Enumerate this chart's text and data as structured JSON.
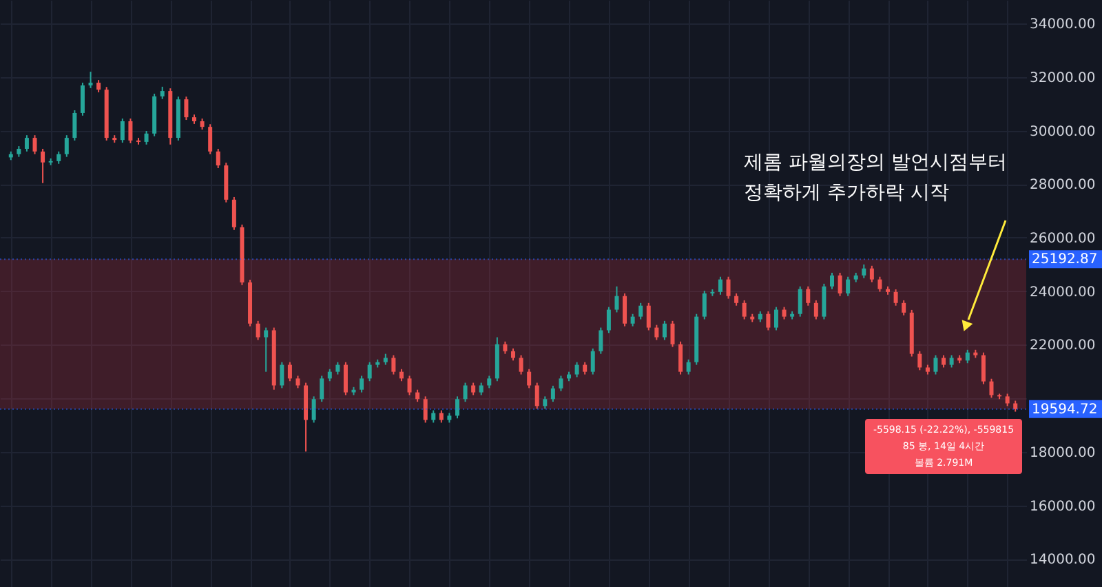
{
  "chart_data": {
    "type": "candlestick",
    "categories": [
      null,
      null,
      null,
      null,
      null,
      null,
      null,
      null,
      null,
      null,
      null,
      null,
      null,
      null,
      null,
      null,
      null,
      null,
      null,
      null,
      null,
      null,
      null,
      null,
      null,
      null,
      null,
      null,
      null,
      null,
      null,
      null,
      null,
      null,
      null,
      null,
      null,
      null,
      null,
      null,
      null,
      null,
      null,
      null,
      null,
      null,
      null,
      null,
      null,
      null,
      null,
      null,
      null,
      null,
      null,
      null,
      null,
      null,
      null,
      null,
      null,
      null,
      null,
      null,
      null,
      null,
      null,
      null,
      null,
      null,
      null,
      null,
      null,
      null,
      null,
      null,
      null,
      null,
      null,
      null,
      null,
      null,
      null,
      null,
      null,
      null,
      null,
      null,
      null,
      null,
      null,
      null,
      null,
      null,
      null,
      null,
      null,
      null,
      null,
      null,
      null,
      null,
      null,
      null,
      null,
      null,
      null,
      null,
      null,
      null,
      null,
      null,
      null,
      null,
      null,
      null,
      null,
      null,
      null,
      null,
      null,
      null,
      null,
      null,
      null,
      null,
      null
    ],
    "ohlc": [
      [
        29000,
        29220,
        28900,
        29120
      ],
      [
        29120,
        29420,
        29020,
        29320
      ],
      [
        29320,
        29830,
        29220,
        29730
      ],
      [
        29730,
        29830,
        29120,
        29220
      ],
      [
        29220,
        29320,
        28040,
        28810
      ],
      [
        28810,
        28960,
        28710,
        28860
      ],
      [
        28860,
        29220,
        28760,
        29120
      ],
      [
        29120,
        29830,
        29020,
        29730
      ],
      [
        29730,
        30760,
        29630,
        30660
      ],
      [
        30660,
        31790,
        30560,
        31690
      ],
      [
        31690,
        32200,
        31590,
        31790
      ],
      [
        31790,
        31890,
        31430,
        31530
      ],
      [
        31530,
        31630,
        29630,
        29730
      ],
      [
        29730,
        29830,
        29550,
        29650
      ],
      [
        29650,
        30450,
        29550,
        30350
      ],
      [
        30350,
        30450,
        29530,
        29630
      ],
      [
        29630,
        29730,
        29480,
        29580
      ],
      [
        29580,
        29990,
        29480,
        29890
      ],
      [
        29890,
        31380,
        29790,
        31280
      ],
      [
        31280,
        31640,
        31180,
        31480
      ],
      [
        31480,
        31580,
        29480,
        29730
      ],
      [
        29730,
        31270,
        29630,
        31170
      ],
      [
        31170,
        31270,
        30400,
        30500
      ],
      [
        30500,
        30600,
        30250,
        30350
      ],
      [
        30350,
        30450,
        30040,
        30140
      ],
      [
        30140,
        30240,
        29120,
        29220
      ],
      [
        29220,
        29320,
        28600,
        28700
      ],
      [
        28700,
        28800,
        27320,
        27420
      ],
      [
        27420,
        27520,
        26290,
        26390
      ],
      [
        26390,
        26490,
        24230,
        24330
      ],
      [
        24330,
        24430,
        22690,
        22790
      ],
      [
        22790,
        22890,
        22180,
        22280
      ],
      [
        22280,
        22640,
        20990,
        22540
      ],
      [
        22540,
        22640,
        20320,
        20480
      ],
      [
        20480,
        21350,
        20380,
        21250
      ],
      [
        21250,
        21350,
        20640,
        20740
      ],
      [
        20740,
        20840,
        20380,
        20480
      ],
      [
        20480,
        20580,
        18010,
        19190
      ],
      [
        19190,
        20070,
        19090,
        19970
      ],
      [
        19970,
        20840,
        19870,
        20740
      ],
      [
        20740,
        21090,
        20640,
        20990
      ],
      [
        20990,
        21350,
        20890,
        21250
      ],
      [
        21250,
        21350,
        20120,
        20220
      ],
      [
        20220,
        20420,
        20120,
        20320
      ],
      [
        20320,
        20840,
        20220,
        20740
      ],
      [
        20740,
        21350,
        20640,
        21250
      ],
      [
        21250,
        21450,
        21150,
        21350
      ],
      [
        21350,
        21660,
        21250,
        21510
      ],
      [
        21510,
        21610,
        20890,
        20990
      ],
      [
        20990,
        21090,
        20640,
        20740
      ],
      [
        20740,
        20840,
        20120,
        20220
      ],
      [
        20220,
        20320,
        19870,
        19970
      ],
      [
        19970,
        20070,
        19090,
        19190
      ],
      [
        19190,
        19550,
        19090,
        19450
      ],
      [
        19450,
        19550,
        19090,
        19190
      ],
      [
        19190,
        19450,
        19090,
        19350
      ],
      [
        19350,
        20070,
        19250,
        19970
      ],
      [
        19970,
        20580,
        19870,
        20480
      ],
      [
        20480,
        20580,
        20120,
        20220
      ],
      [
        20220,
        20580,
        20120,
        20480
      ],
      [
        20480,
        20840,
        20380,
        20740
      ],
      [
        20740,
        22280,
        20640,
        22020
      ],
      [
        22020,
        22120,
        21660,
        21760
      ],
      [
        21760,
        21860,
        21410,
        21510
      ],
      [
        21510,
        21610,
        20890,
        20990
      ],
      [
        20990,
        21090,
        20380,
        20480
      ],
      [
        20480,
        20580,
        19610,
        19710
      ],
      [
        19710,
        20070,
        19610,
        19970
      ],
      [
        19970,
        20470,
        19870,
        20370
      ],
      [
        20370,
        20840,
        20270,
        20740
      ],
      [
        20740,
        20990,
        20640,
        20890
      ],
      [
        20890,
        21350,
        20790,
        21250
      ],
      [
        21250,
        21350,
        20890,
        20990
      ],
      [
        20990,
        21860,
        20890,
        21760
      ],
      [
        21760,
        22640,
        21660,
        22540
      ],
      [
        22540,
        23410,
        22440,
        23310
      ],
      [
        23310,
        24180,
        23210,
        23820
      ],
      [
        23820,
        23920,
        22690,
        22790
      ],
      [
        22790,
        23150,
        22690,
        23050
      ],
      [
        23050,
        23560,
        22950,
        23460
      ],
      [
        23460,
        23560,
        22540,
        22640
      ],
      [
        22640,
        22740,
        22180,
        22280
      ],
      [
        22280,
        22890,
        22180,
        22790
      ],
      [
        22790,
        22890,
        21920,
        22020
      ],
      [
        22020,
        22120,
        20890,
        20990
      ],
      [
        20990,
        21450,
        20890,
        21350
      ],
      [
        21350,
        23150,
        21250,
        23050
      ],
      [
        23050,
        24020,
        22950,
        23920
      ],
      [
        23920,
        24070,
        23820,
        23970
      ],
      [
        23970,
        24540,
        23870,
        24440
      ],
      [
        24440,
        24540,
        23720,
        23820
      ],
      [
        23820,
        23920,
        23460,
        23560
      ],
      [
        23560,
        23660,
        22950,
        23050
      ],
      [
        23050,
        23150,
        22850,
        22950
      ],
      [
        22950,
        23250,
        22850,
        23150
      ],
      [
        23150,
        23250,
        22540,
        22640
      ],
      [
        22640,
        23410,
        22540,
        23310
      ],
      [
        23310,
        23410,
        22950,
        23050
      ],
      [
        23050,
        23250,
        22950,
        23150
      ],
      [
        23150,
        24180,
        23050,
        24080
      ],
      [
        24080,
        24180,
        23460,
        23560
      ],
      [
        23560,
        23660,
        22950,
        23050
      ],
      [
        23050,
        24280,
        22950,
        24180
      ],
      [
        24180,
        24690,
        24080,
        24590
      ],
      [
        24590,
        24690,
        23820,
        23920
      ],
      [
        23920,
        24540,
        23820,
        24440
      ],
      [
        24440,
        24690,
        24340,
        24590
      ],
      [
        24590,
        25000,
        24490,
        24850
      ],
      [
        24850,
        24950,
        24340,
        24440
      ],
      [
        24440,
        24540,
        23980,
        24080
      ],
      [
        24080,
        24180,
        23870,
        23970
      ],
      [
        23970,
        24070,
        23460,
        23560
      ],
      [
        23560,
        23660,
        23100,
        23200
      ],
      [
        23200,
        23300,
        21560,
        21660
      ],
      [
        21660,
        21760,
        21050,
        21150
      ],
      [
        21150,
        21250,
        20890,
        20990
      ],
      [
        20990,
        21610,
        20890,
        21510
      ],
      [
        21510,
        21610,
        21150,
        21250
      ],
      [
        21250,
        21610,
        21150,
        21510
      ],
      [
        21510,
        21610,
        21310,
        21410
      ],
      [
        21410,
        21810,
        21310,
        21710
      ],
      [
        21710,
        21810,
        21510,
        21610
      ],
      [
        21610,
        21710,
        20530,
        20630
      ],
      [
        20630,
        20730,
        20020,
        20120
      ],
      [
        20120,
        20170,
        19970,
        20070
      ],
      [
        20070,
        20170,
        19710,
        19810
      ],
      [
        19810,
        19910,
        19500,
        19594.72
      ]
    ],
    "colors": [
      "#26a69a",
      "#26a69a",
      "#26a69a",
      "#ef5350",
      "#ef5350",
      "#26a69a",
      "#26a69a",
      "#26a69a",
      "#26a69a",
      "#26a69a",
      "#26a69a",
      "#ef5350",
      "#ef5350",
      "#ef5350",
      "#26a69a",
      "#ef5350",
      "#ef5350",
      "#26a69a",
      "#26a69a",
      "#26a69a",
      "#ef5350",
      "#26a69a",
      "#ef5350",
      "#ef5350",
      "#ef5350",
      "#ef5350",
      "#ef5350",
      "#ef5350",
      "#ef5350",
      "#ef5350",
      "#ef5350",
      "#ef5350",
      "#26a69a",
      "#ef5350",
      "#26a69a",
      "#ef5350",
      "#ef5350",
      "#ef5350",
      "#26a69a",
      "#26a69a",
      "#26a69a",
      "#26a69a",
      "#ef5350",
      "#26a69a",
      "#26a69a",
      "#26a69a",
      "#26a69a",
      "#26a69a",
      "#ef5350",
      "#ef5350",
      "#ef5350",
      "#ef5350",
      "#ef5350",
      "#26a69a",
      "#ef5350",
      "#26a69a",
      "#26a69a",
      "#26a69a",
      "#ef5350",
      "#26a69a",
      "#26a69a",
      "#26a69a",
      "#ef5350",
      "#ef5350",
      "#ef5350",
      "#ef5350",
      "#ef5350",
      "#26a69a",
      "#26a69a",
      "#26a69a",
      "#26a69a",
      "#26a69a",
      "#ef5350",
      "#26a69a",
      "#26a69a",
      "#26a69a",
      "#26a69a",
      "#ef5350",
      "#26a69a",
      "#26a69a",
      "#ef5350",
      "#ef5350",
      "#26a69a",
      "#ef5350",
      "#ef5350",
      "#26a69a",
      "#26a69a",
      "#26a69a",
      "#26a69a",
      "#26a69a",
      "#ef5350",
      "#ef5350",
      "#ef5350",
      "#ef5350",
      "#26a69a",
      "#ef5350",
      "#26a69a",
      "#ef5350",
      "#26a69a",
      "#26a69a",
      "#ef5350",
      "#ef5350",
      "#26a69a",
      "#26a69a",
      "#ef5350",
      "#26a69a",
      "#26a69a",
      "#26a69a",
      "#ef5350",
      "#ef5350",
      "#ef5350",
      "#ef5350",
      "#ef5350",
      "#ef5350",
      "#ef5350",
      "#ef5350",
      "#26a69a",
      "#ef5350",
      "#26a69a",
      "#ef5350",
      "#26a69a",
      "#ef5350",
      "#ef5350",
      "#ef5350",
      "#ef5350",
      "#ef5350",
      "#ef5350"
    ],
    "ylim": [
      12950,
      34880
    ],
    "yticks": [
      {
        "value": 14000,
        "label": "14000.00"
      },
      {
        "value": 16000,
        "label": "16000.00"
      },
      {
        "value": 18000,
        "label": "18000.00"
      },
      {
        "value": 20000,
        "label": null
      },
      {
        "value": 22000,
        "label": "22000.00"
      },
      {
        "value": 24000,
        "label": "24000.00"
      },
      {
        "value": 26000,
        "label": "26000.00"
      },
      {
        "value": 28000,
        "label": "28000.00"
      },
      {
        "value": 30000,
        "label": "30000.00"
      },
      {
        "value": 32000,
        "label": "32000.00"
      },
      {
        "value": 34000,
        "label": "34000.00"
      }
    ],
    "tick_labels": "y",
    "grid": true,
    "bands": [
      {
        "axis": "y",
        "from": 19594.72,
        "to": 25192.87,
        "color": "#f23645"
      }
    ],
    "ref_lines": [
      {
        "axis": "y",
        "value": 25192.87,
        "label": "25192.87",
        "color": "#2962ff"
      },
      {
        "axis": "y",
        "value": 19594.72,
        "label": "19594.72",
        "color": "#2962ff"
      }
    ],
    "annotations": [
      "제롬 파월의장의 발언시점부터\n정확하게 추가하락 시작",
      "-5598.15 (-22.22%), -559815\n85 봉, 14일 4시간\n볼륨 2.791M"
    ]
  }
}
